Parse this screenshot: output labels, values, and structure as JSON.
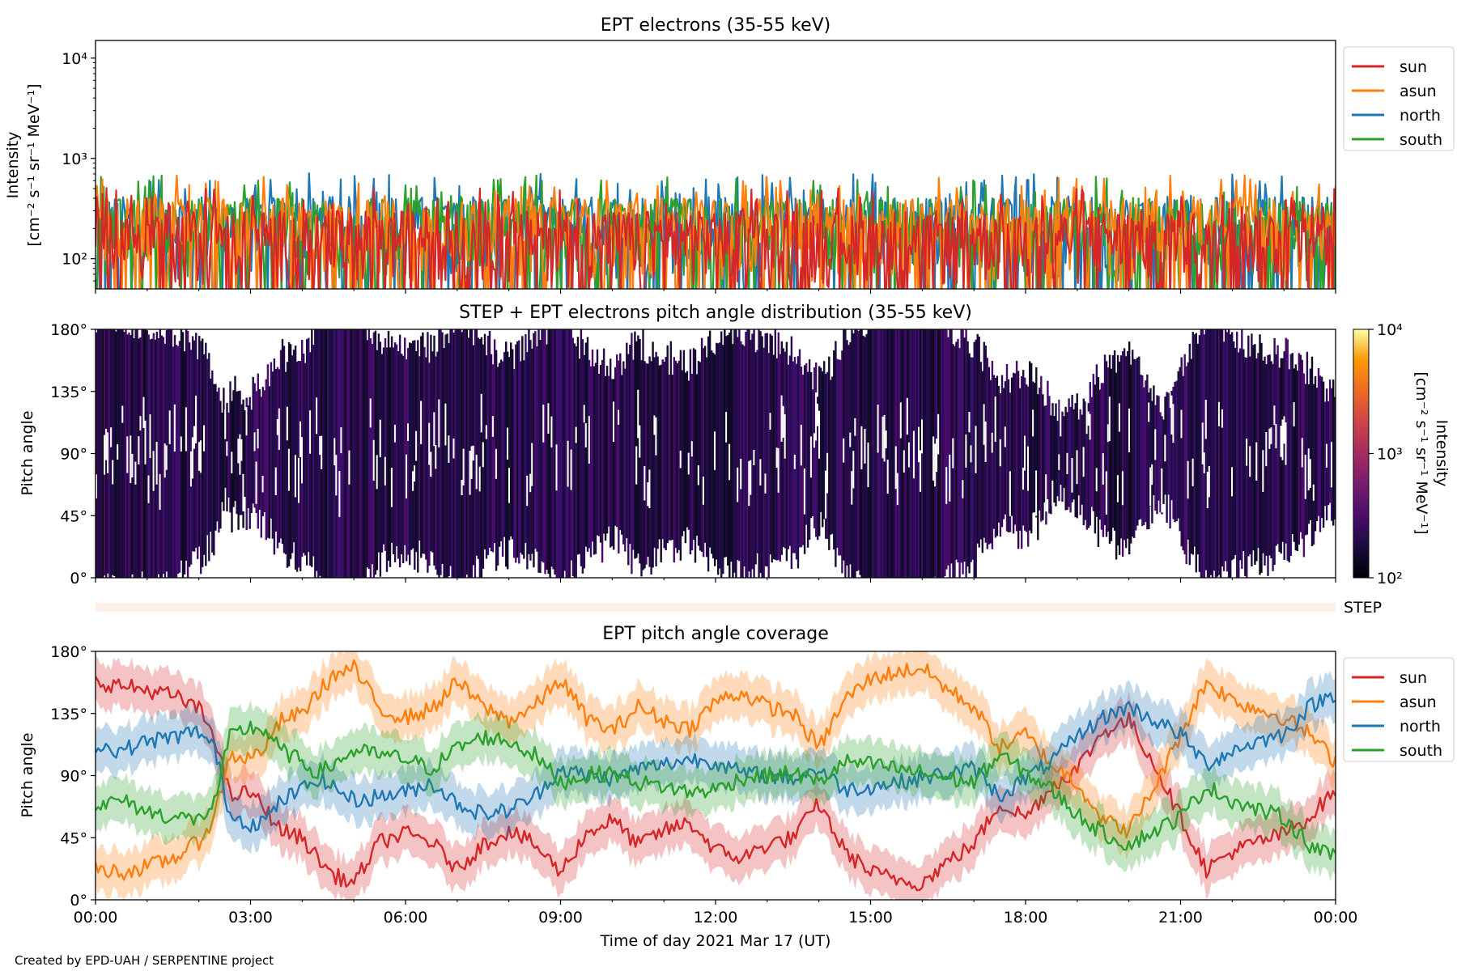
{
  "credit": "Created by EPD-UAH / SERPENTINE project",
  "chart_data": [
    {
      "panel": "intensity",
      "type": "line",
      "title": "EPT electrons (35-55 keV)",
      "ylabel_line1": "Intensity",
      "ylabel_line2": "[cm⁻² s⁻¹ sr⁻¹ MeV⁻¹]",
      "yscale": "log",
      "ylim": [
        50,
        15000
      ],
      "yticks": [
        {
          "value": 100,
          "label": "10²"
        },
        {
          "value": 1000,
          "label": "10³"
        },
        {
          "value": 10000,
          "label": "10⁴"
        }
      ],
      "xlim_hours": [
        0,
        24
      ],
      "legend_position": "outside-right",
      "series": [
        {
          "name": "sun",
          "color": "#d62728",
          "typical_range": [
            50,
            300
          ]
        },
        {
          "name": "asun",
          "color": "#ff7f0e",
          "typical_range": [
            60,
            400
          ]
        },
        {
          "name": "north",
          "color": "#1f77b4",
          "typical_range": [
            60,
            420
          ]
        },
        {
          "name": "south",
          "color": "#2ca02c",
          "typical_range": [
            60,
            400
          ]
        }
      ]
    },
    {
      "panel": "pad",
      "type": "heatmap",
      "title": "STEP + EPT electrons pitch angle distribution (35-55 keV)",
      "ylabel": "Pitch angle",
      "ylim": [
        0,
        180
      ],
      "yticks": [
        "0°",
        "45°",
        "90°",
        "135°",
        "180°"
      ],
      "colorbar": {
        "label_line1": "Intensity",
        "label_line2": "[cm⁻² s⁻¹ sr⁻¹ MeV⁻¹]",
        "scale": "log",
        "range": [
          100,
          10000
        ],
        "ticks": [
          "10²",
          "10³",
          "10⁴"
        ],
        "colormap": "inferno"
      },
      "typical_intensity": [
        100,
        300
      ]
    },
    {
      "panel": "step",
      "type": "heatmap",
      "label": "STEP",
      "fill": "#fdf0ea"
    },
    {
      "panel": "coverage",
      "type": "line",
      "title": "EPT pitch angle coverage",
      "ylabel": "Pitch angle",
      "xlabel": "Time of day 2021 Mar 17 (UT)",
      "ylim": [
        0,
        180
      ],
      "yticks": [
        "0°",
        "45°",
        "90°",
        "135°",
        "180°"
      ],
      "xticks": [
        "00:00",
        "03:00",
        "06:00",
        "09:00",
        "12:00",
        "15:00",
        "18:00",
        "21:00",
        "00:00"
      ],
      "xlim_hours": [
        0,
        24
      ],
      "legend_position": "outside-right",
      "series": [
        {
          "name": "sun",
          "color": "#d62728",
          "x": [
            0,
            0.5,
            1,
            1.5,
            2,
            2.3,
            2.6,
            3,
            3.3,
            3.6,
            4,
            4.3,
            4.6,
            5,
            5.5,
            6,
            6.5,
            7,
            7.5,
            8,
            8.5,
            9,
            9.5,
            10,
            10.5,
            11,
            11.5,
            12,
            12.5,
            13,
            13.5,
            14,
            14.5,
            15,
            15.5,
            16,
            16.5,
            17,
            17.5,
            18,
            18.5,
            19,
            19.5,
            20,
            20.5,
            21,
            21.5,
            22,
            22.5,
            23,
            23.5,
            24
          ],
          "y": [
            158,
            155,
            152,
            148,
            138,
            120,
            75,
            78,
            65,
            50,
            45,
            30,
            18,
            12,
            42,
            48,
            42,
            22,
            40,
            50,
            40,
            20,
            48,
            58,
            40,
            50,
            56,
            36,
            30,
            40,
            45,
            70,
            35,
            20,
            15,
            12,
            28,
            40,
            70,
            60,
            82,
            95,
            122,
            130,
            98,
            60,
            22,
            35,
            42,
            48,
            60,
            80
          ]
        },
        {
          "name": "asun",
          "color": "#ff7f0e",
          "x": [
            0,
            0.5,
            1,
            1.5,
            2,
            2.3,
            2.6,
            3,
            3.3,
            3.6,
            4,
            4.3,
            4.6,
            5,
            5.5,
            6,
            6.5,
            7,
            7.5,
            8,
            8.5,
            9,
            9.5,
            10,
            10.5,
            11,
            11.5,
            12,
            12.5,
            13,
            13.5,
            14,
            14.5,
            15,
            15.5,
            16,
            16.5,
            17,
            17.5,
            18,
            18.5,
            19,
            19.5,
            20,
            20.5,
            21,
            21.5,
            22,
            22.5,
            23,
            23.5,
            24
          ],
          "y": [
            22,
            20,
            24,
            30,
            42,
            60,
            105,
            102,
            112,
            130,
            135,
            150,
            162,
            168,
            138,
            132,
            138,
            158,
            140,
            130,
            140,
            160,
            132,
            122,
            140,
            130,
            124,
            144,
            150,
            140,
            135,
            110,
            145,
            160,
            165,
            168,
            152,
            140,
            110,
            120,
            98,
            85,
            58,
            50,
            82,
            120,
            158,
            145,
            138,
            132,
            120,
            100
          ]
        },
        {
          "name": "north",
          "color": "#1f77b4",
          "x": [
            0,
            0.5,
            1,
            1.5,
            2,
            2.3,
            2.6,
            3,
            3.3,
            3.6,
            4,
            4.3,
            4.6,
            5,
            5.5,
            6,
            6.5,
            7,
            7.5,
            8,
            8.5,
            9,
            9.5,
            10,
            10.5,
            11,
            11.5,
            12,
            12.5,
            13,
            13.5,
            14,
            14.5,
            15,
            15.5,
            16,
            16.5,
            17,
            17.5,
            18,
            18.5,
            19,
            19.5,
            20,
            20.5,
            21,
            21.5,
            22,
            22.5,
            23,
            23.5,
            24
          ],
          "y": [
            112,
            108,
            115,
            118,
            122,
            110,
            62,
            55,
            58,
            72,
            80,
            88,
            82,
            72,
            75,
            78,
            85,
            70,
            62,
            65,
            75,
            95,
            90,
            88,
            95,
            98,
            102,
            100,
            92,
            90,
            88,
            95,
            80,
            82,
            85,
            88,
            92,
            95,
            75,
            88,
            100,
            118,
            132,
            140,
            130,
            120,
            98,
            108,
            115,
            120,
            140,
            150
          ]
        },
        {
          "name": "south",
          "color": "#2ca02c",
          "x": [
            0,
            0.5,
            1,
            1.5,
            2,
            2.3,
            2.6,
            3,
            3.3,
            3.6,
            4,
            4.3,
            4.6,
            5,
            5.5,
            6,
            6.5,
            7,
            7.5,
            8,
            8.5,
            9,
            9.5,
            10,
            10.5,
            11,
            11.5,
            12,
            12.5,
            13,
            13.5,
            14,
            14.5,
            15,
            15.5,
            16,
            16.5,
            17,
            17.5,
            18,
            18.5,
            19,
            19.5,
            20,
            20.5,
            21,
            21.5,
            22,
            22.5,
            23,
            23.5,
            24
          ],
          "y": [
            68,
            72,
            64,
            60,
            58,
            70,
            118,
            125,
            122,
            108,
            100,
            92,
            98,
            108,
            105,
            102,
            95,
            110,
            118,
            115,
            105,
            85,
            90,
            92,
            85,
            82,
            78,
            80,
            88,
            90,
            92,
            85,
            100,
            98,
            95,
            92,
            88,
            85,
            105,
            92,
            80,
            62,
            48,
            40,
            50,
            60,
            82,
            72,
            65,
            60,
            40,
            30
          ]
        }
      ]
    }
  ]
}
